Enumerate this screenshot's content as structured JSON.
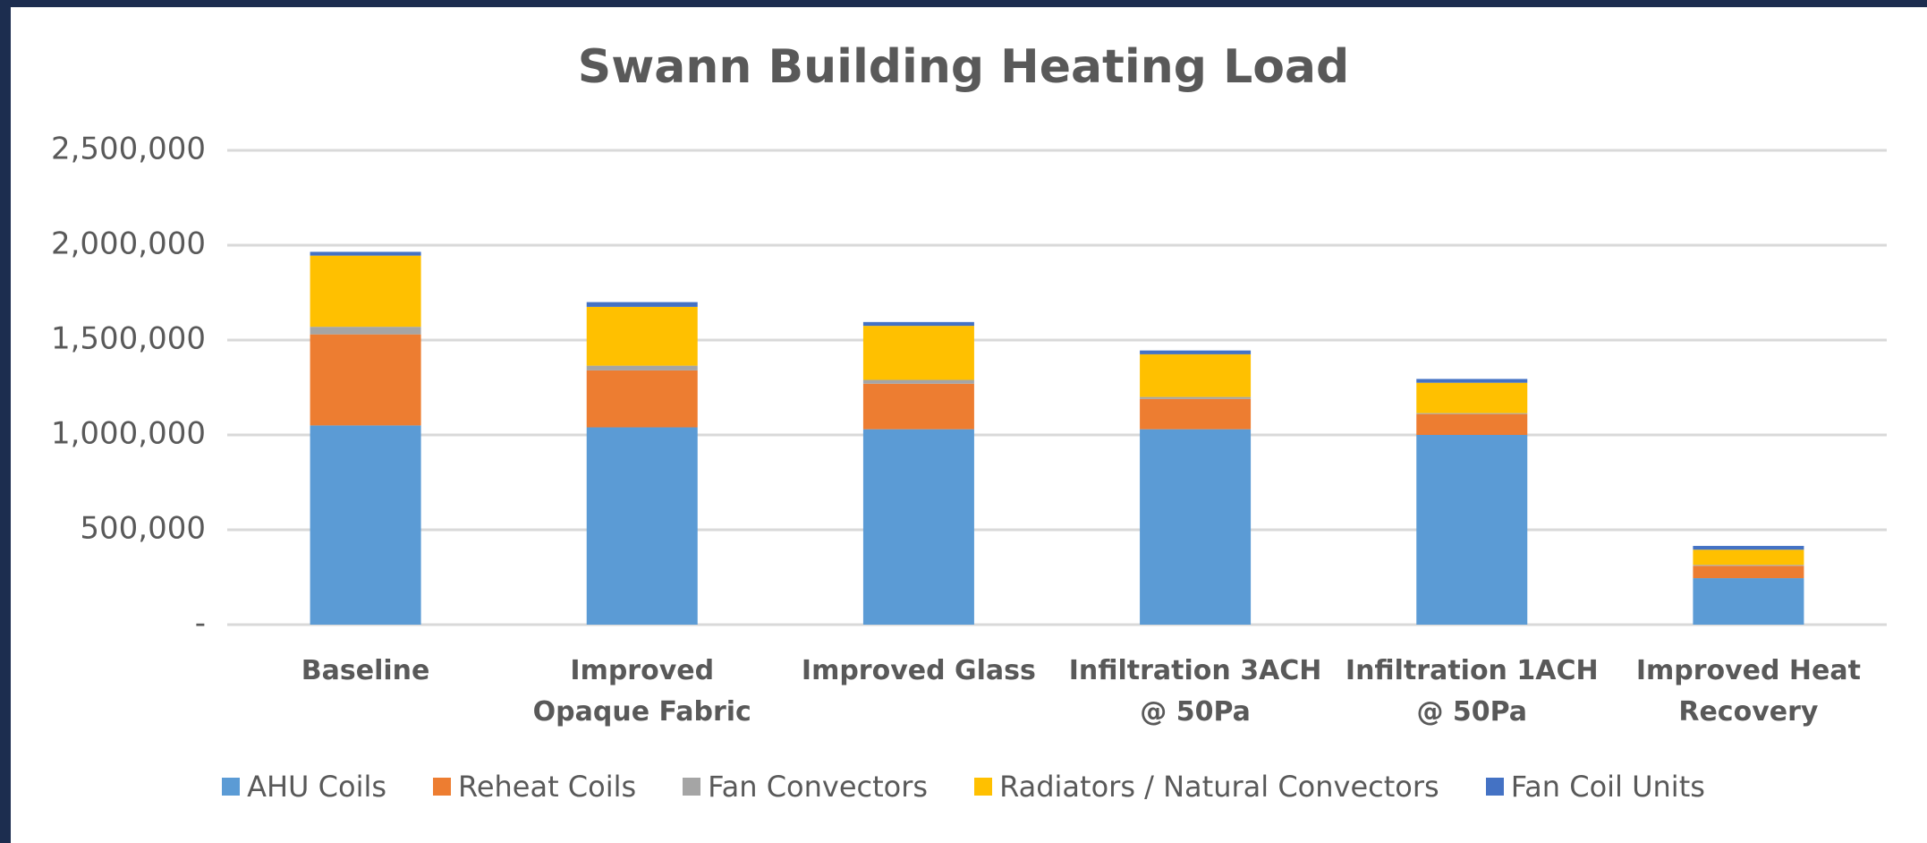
{
  "chart_data": {
    "type": "stacked_bar",
    "title": "Swann Building Heating Load",
    "categories": [
      "Baseline",
      "Improved Opaque Fabric",
      "Improved Glass",
      "Infiltration 3ACH @ 50Pa",
      "Infiltration 1ACH @ 50Pa",
      "Improved Heat Recovery"
    ],
    "series": [
      {
        "name": "AHU Coils",
        "color": "#5b9bd5",
        "values": [
          1050000,
          1040000,
          1030000,
          1030000,
          1000000,
          245000
        ]
      },
      {
        "name": "Reheat Coils",
        "color": "#ed7d31",
        "values": [
          480000,
          300000,
          240000,
          160000,
          110000,
          65000
        ]
      },
      {
        "name": "Fan Convectors",
        "color": "#a5a5a5",
        "values": [
          40000,
          25000,
          20000,
          10000,
          5000,
          5000
        ]
      },
      {
        "name": "Radiators / Natural Convectors",
        "color": "#ffc000",
        "values": [
          375000,
          310000,
          285000,
          225000,
          160000,
          80000
        ]
      },
      {
        "name": "Fan Coil Units",
        "color": "#4472c4",
        "values": [
          20000,
          25000,
          20000,
          20000,
          20000,
          20000
        ]
      }
    ],
    "ylim": [
      0,
      2500000
    ],
    "yticks": [
      {
        "value": 0,
        "label": "-"
      },
      {
        "value": 500000,
        "label": "500,000"
      },
      {
        "value": 1000000,
        "label": "1,000,000"
      },
      {
        "value": 1500000,
        "label": "1,500,000"
      },
      {
        "value": 2000000,
        "label": "2,000,000"
      },
      {
        "value": 2500000,
        "label": "2,500,000"
      }
    ],
    "grid": true,
    "legend": "bottom"
  }
}
